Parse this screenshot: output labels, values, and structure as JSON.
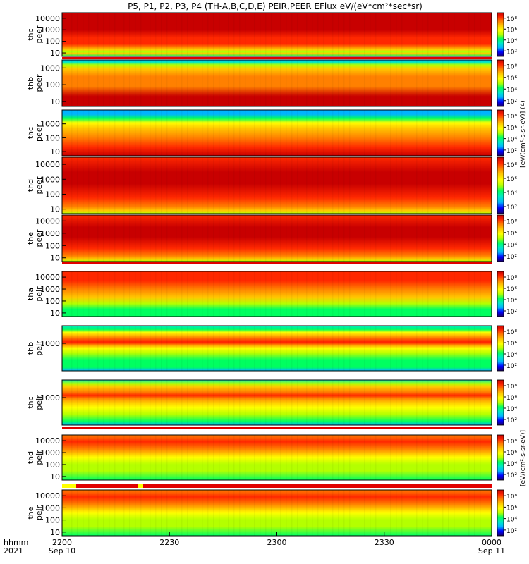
{
  "title": "P5, P1, P2, P3, P4 (TH-A,B,C,D,E) PEIR,PEER EFlux eV/(eV*cm²*sec*sr)",
  "x_axis": {
    "hhmm_label": "hhmm",
    "year_label": "2021",
    "ticks": [
      {
        "t": 0,
        "label": "2200",
        "sublabel": "Sep 10"
      },
      {
        "t": 30,
        "label": "2230",
        "sublabel": ""
      },
      {
        "t": 60,
        "label": "2300",
        "sublabel": ""
      },
      {
        "t": 90,
        "label": "2330",
        "sublabel": ""
      },
      {
        "t": 120,
        "label": "0000",
        "sublabel": "Sep 11"
      }
    ],
    "range_minutes": [
      0,
      120
    ]
  },
  "colors": {
    "background": "#ffffff",
    "scale": [
      "#1a0066",
      "#0000ff",
      "#00b4ff",
      "#00e8c8",
      "#00ff60",
      "#b4ff00",
      "#ffff00",
      "#ffc800",
      "#ff8000",
      "#ff2800",
      "#c80000"
    ]
  },
  "colorbar_label_electron": "[eV/(cm²-s-sr-eV)] (4)",
  "colorbar_label_ion": "[eV/(cm²-s-sr-eV)]",
  "chart_data": {
    "type": "heatmap",
    "x_unit": "minutes after 2021-09-10 22:00",
    "z_unit": "eV/(eV*cm²*sec*sr)",
    "panels": [
      {
        "ylabel1": "thc",
        "ylabel2": "peer",
        "yticks": [
          "10000",
          "1000",
          "100",
          "10"
        ],
        "ylog": [
          5,
          30000
        ],
        "zticks": [
          "10⁸",
          "10⁶",
          "10⁴",
          "10²"
        ],
        "zlog": [
          1,
          9
        ],
        "profile": [
          [
            5,
            4.5
          ],
          [
            9,
            6.5
          ],
          [
            12,
            5
          ],
          [
            20,
            6.5
          ],
          [
            60,
            7.8
          ],
          [
            200,
            8.3
          ],
          [
            1000,
            8.6
          ],
          [
            5000,
            8.8
          ],
          [
            30000,
            8.6
          ]
        ],
        "flag": "#e00000"
      },
      {
        "ylabel1": "thb",
        "ylabel2": "peer",
        "yticks": [
          "1000",
          "100",
          "10"
        ],
        "ylog": [
          5,
          3000
        ],
        "zticks": [
          "10⁸",
          "10⁶",
          "10⁴",
          "10²"
        ],
        "zlog": [
          1,
          9
        ],
        "profile": [
          [
            5,
            8.8
          ],
          [
            20,
            8.6
          ],
          [
            80,
            7.6
          ],
          [
            300,
            7.0
          ],
          [
            900,
            6.3
          ],
          [
            1500,
            5.2
          ],
          [
            2200,
            3.5
          ],
          [
            3000,
            2.5
          ]
        ],
        "flag": ""
      },
      {
        "ylabel1": "thc",
        "ylabel2": "peer",
        "yticks": [
          "1000",
          "100",
          "10"
        ],
        "ylog": [
          5,
          10000
        ],
        "zticks": [
          "10⁸",
          "10⁶",
          "10⁴",
          "10²"
        ],
        "zlog": [
          1,
          9
        ],
        "profile": [
          [
            5,
            8.6
          ],
          [
            20,
            8.3
          ],
          [
            100,
            7.5
          ],
          [
            500,
            6.5
          ],
          [
            1200,
            5.5
          ],
          [
            2500,
            4.2
          ],
          [
            5000,
            2.6
          ],
          [
            10000,
            2.2
          ]
        ],
        "flag": ""
      },
      {
        "ylabel1": "thd",
        "ylabel2": "peer",
        "yticks": [
          "10000",
          "1000",
          "100",
          "10"
        ],
        "ylog": [
          5,
          30000
        ],
        "zticks": [
          "10⁸",
          "10⁶",
          "10⁴",
          "10²"
        ],
        "zlog": [
          1,
          9
        ],
        "profile": [
          [
            5,
            5
          ],
          [
            8,
            6.5
          ],
          [
            15,
            7.6
          ],
          [
            60,
            8.3
          ],
          [
            500,
            8.6
          ],
          [
            3000,
            8.8
          ],
          [
            30000,
            8.4
          ]
        ],
        "flag": ""
      },
      {
        "ylabel1": "the",
        "ylabel2": "peer",
        "yticks": [
          "10000",
          "1000",
          "100",
          "10"
        ],
        "ylog": [
          5,
          30000
        ],
        "zticks": [
          "10⁸",
          "10⁶",
          "10⁴",
          "10²"
        ],
        "zlog": [
          1,
          9
        ],
        "profile": [
          [
            5,
            4.8
          ],
          [
            8,
            6.3
          ],
          [
            15,
            7.5
          ],
          [
            60,
            8.2
          ],
          [
            500,
            8.6
          ],
          [
            3000,
            8.8
          ],
          [
            30000,
            8.4
          ]
        ],
        "flag": "#e00000"
      },
      {
        "ylabel1": "tha",
        "ylabel2": "peir",
        "yticks": [
          "10000",
          "1000",
          "100",
          "10"
        ],
        "ylog": [
          5,
          30000
        ],
        "zticks": [
          "10⁸",
          "10⁶",
          "10⁴",
          "10²"
        ],
        "zlog": [
          1,
          9
        ],
        "profile": [
          [
            5,
            3.8
          ],
          [
            20,
            4.3
          ],
          [
            60,
            5.3
          ],
          [
            200,
            6.4
          ],
          [
            1000,
            7.4
          ],
          [
            5000,
            8.0
          ],
          [
            30000,
            8.2
          ]
        ],
        "flag": ""
      },
      {
        "ylabel1": "thb",
        "ylabel2": "peir",
        "yticks": [
          "1000"
        ],
        "ylog": [
          5,
          30000
        ],
        "zticks": [
          "10⁸",
          "10⁶",
          "10⁴",
          "10²"
        ],
        "zlog": [
          1,
          9
        ],
        "profile": [
          [
            5,
            2.5
          ],
          [
            10,
            3.8
          ],
          [
            40,
            4.5
          ],
          [
            150,
            5.2
          ],
          [
            400,
            6.0
          ],
          [
            800,
            7.2
          ],
          [
            1100,
            8.5
          ],
          [
            1500,
            8.0
          ],
          [
            3000,
            7.2
          ],
          [
            8000,
            6.0
          ],
          [
            15000,
            4.5
          ],
          [
            30000,
            3.0
          ]
        ],
        "flag": ""
      },
      {
        "ylabel1": "thc",
        "ylabel2": "peir",
        "yticks": [
          "1000"
        ],
        "ylog": [
          5,
          30000
        ],
        "zticks": [
          "10⁸",
          "10⁶",
          "10⁴",
          "10²"
        ],
        "zlog": [
          1,
          9
        ],
        "profile": [
          [
            5,
            2.5
          ],
          [
            10,
            3.8
          ],
          [
            40,
            4.6
          ],
          [
            150,
            5.4
          ],
          [
            400,
            6.3
          ],
          [
            900,
            7.4
          ],
          [
            1500,
            7.9
          ],
          [
            3000,
            7.5
          ],
          [
            8000,
            6.2
          ],
          [
            15000,
            4.6
          ],
          [
            30000,
            3.0
          ]
        ],
        "flag": "#e00000"
      },
      {
        "ylabel1": "thd",
        "ylabel2": "peir",
        "yticks": [
          "10000",
          "1000",
          "100",
          "10"
        ],
        "ylog": [
          5,
          30000
        ],
        "zticks": [
          "10⁸",
          "10⁶",
          "10⁴",
          "10²"
        ],
        "zlog": [
          1,
          9
        ],
        "profile": [
          [
            5,
            4.2
          ],
          [
            30,
            4.6
          ],
          [
            100,
            5.0
          ],
          [
            400,
            6.0
          ],
          [
            2000,
            7.2
          ],
          [
            8000,
            7.8
          ],
          [
            30000,
            7.6
          ]
        ],
        "flag": "mixed"
      },
      {
        "ylabel1": "the",
        "ylabel2": "peir",
        "yticks": [
          "10000",
          "1000",
          "100",
          "10"
        ],
        "ylog": [
          5,
          30000
        ],
        "zticks": [
          "10⁸",
          "10⁶",
          "10⁴",
          "10²"
        ],
        "zlog": [
          1,
          9
        ],
        "profile": [
          [
            5,
            4.2
          ],
          [
            30,
            4.6
          ],
          [
            100,
            5.0
          ],
          [
            400,
            6.0
          ],
          [
            2000,
            7.2
          ],
          [
            8000,
            7.8
          ],
          [
            30000,
            7.6
          ]
        ],
        "flag": ""
      }
    ]
  }
}
